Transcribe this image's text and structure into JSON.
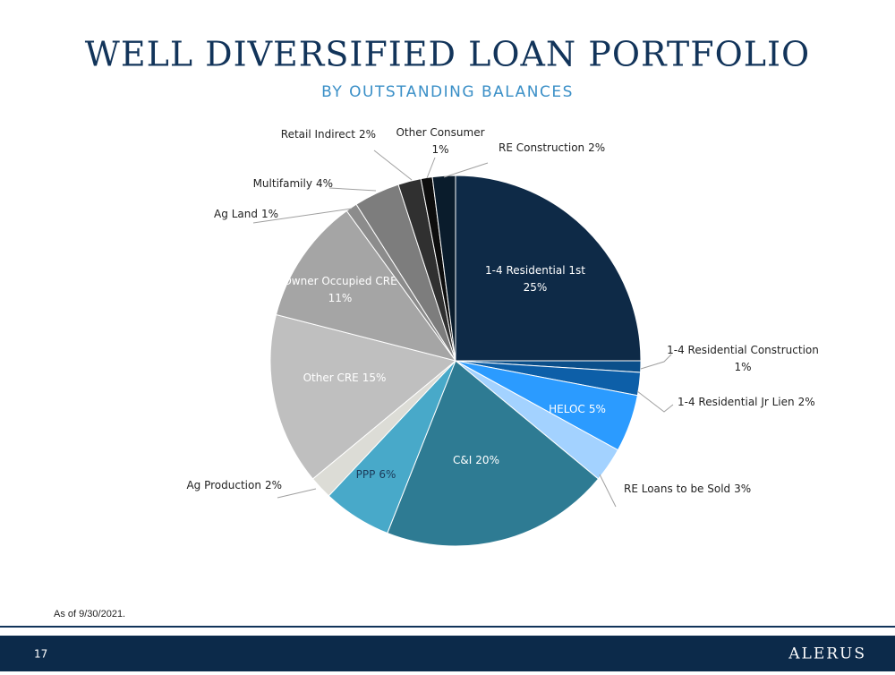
{
  "chart_data": {
    "type": "pie",
    "title": "WELL DIVERSIFIED LOAN PORTFOLIO",
    "subtitle": "BY OUTSTANDING BALANCES",
    "categories": [
      "1-4 Residential 1st",
      "1-4 Residential Construction",
      "1-4 Residential Jr Lien",
      "HELOC",
      "RE Loans to be Sold",
      "C&I",
      "PPP",
      "Ag Production",
      "Other CRE",
      "Owner Occupied CRE",
      "Ag Land",
      "Multifamily",
      "Retail Indirect",
      "Other Consumer",
      "RE Construction"
    ],
    "values": [
      25,
      1,
      2,
      5,
      3,
      20,
      6,
      2,
      15,
      11,
      1,
      4,
      2,
      1,
      2
    ],
    "value_labels": [
      "25%",
      "1%",
      "2%",
      "5%",
      "3%",
      "20%",
      "6%",
      "2%",
      "15%",
      "11%",
      "1%",
      "4%",
      "2%",
      "1%",
      "2%"
    ],
    "colors": [
      "#0e2a47",
      "#0b4f8a",
      "#0d5fa8",
      "#2b9bff",
      "#a3d2ff",
      "#2e7b93",
      "#48a9c9",
      "#dcdcd6",
      "#bfbfbf",
      "#a5a5a5",
      "#8c8c8c",
      "#7d7d7d",
      "#303030",
      "#0d0d0d",
      "#0a1c2c"
    ]
  },
  "footnote": "As of 9/30/2021.",
  "page_number": "17",
  "logo": "ALERUS"
}
